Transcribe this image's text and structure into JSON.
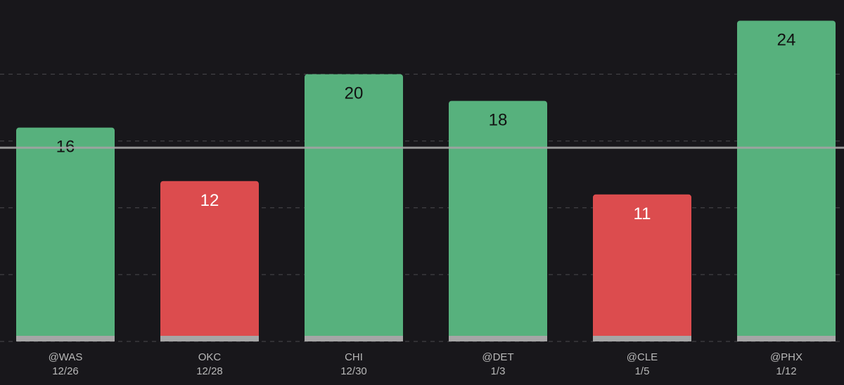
{
  "colors": {
    "background": "#18171b",
    "over": "#57b17d",
    "under": "#dc4c4e",
    "base": "#a6a6a6",
    "gridline": "#4a4a4e",
    "threshold": "#a3a3a3",
    "label_on_over": "#111111",
    "label_on_under": "#ffffff",
    "tick_text": "#b8b8b8"
  },
  "chart_data": {
    "type": "bar",
    "categories": [
      "@WAS",
      "OKC",
      "CHI",
      "@DET",
      "@CLE",
      "@PHX"
    ],
    "dates": [
      "12/26",
      "12/28",
      "12/30",
      "1/3",
      "1/5",
      "1/12"
    ],
    "values": [
      16,
      12,
      20,
      18,
      11,
      24
    ],
    "status": [
      "over",
      "under",
      "over",
      "over",
      "under",
      "over"
    ],
    "threshold": 14.5,
    "ylim": [
      0,
      24.5
    ],
    "gridlines": [
      5,
      10,
      15,
      20
    ],
    "grid": true,
    "title": "",
    "xlabel": "",
    "ylabel": ""
  }
}
